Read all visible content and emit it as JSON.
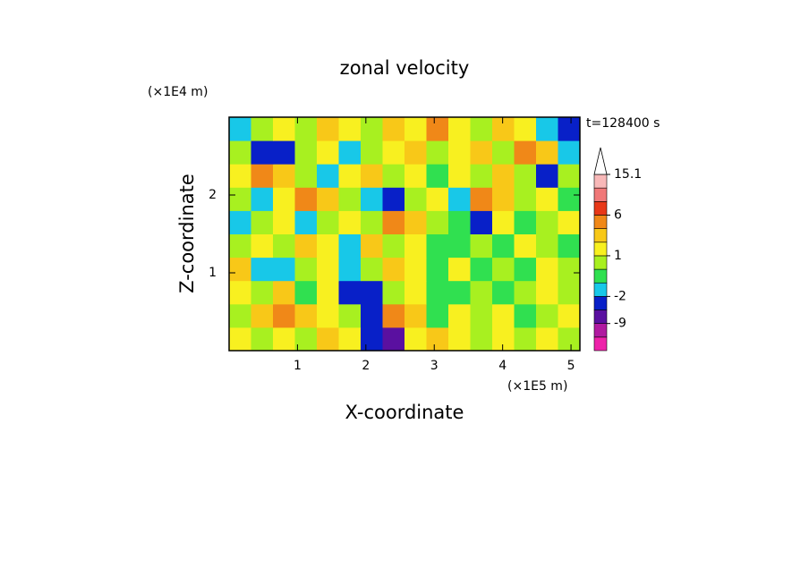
{
  "chart_data": {
    "type": "contour",
    "title": "zonal velocity",
    "x_label": "X-coordinate",
    "y_label": "Z-coordinate",
    "x_unit": "(×1E5 m)",
    "y_unit": "(×1E4 m)",
    "annotation": "t=128400 s",
    "xlim": [
      0,
      5.13
    ],
    "ylim": [
      0,
      3
    ],
    "xticks": [
      1,
      2,
      3,
      4,
      5
    ],
    "yticks": [
      1,
      2
    ],
    "z": [
      [
        1.5,
        0.5,
        1.5,
        0.5,
        2.5,
        1.5,
        -5,
        -6.5,
        1.5,
        2.5,
        1.5,
        0.5,
        1.5,
        0.5,
        1.5,
        0.5
      ],
      [
        0.5,
        2.5,
        4,
        2.5,
        1.5,
        0.5,
        -4,
        4,
        2.5,
        -0.5,
        1.5,
        0.5,
        1.5,
        -0.5,
        0.5,
        1.5
      ],
      [
        1.5,
        0.5,
        2.5,
        -0.5,
        1.5,
        -4,
        -5,
        0.5,
        1.5,
        -0.5,
        -0.5,
        0.5,
        -0.5,
        0.5,
        1.5,
        0.5
      ],
      [
        2.5,
        -1.5,
        -1.5,
        0.5,
        1.5,
        -1.5,
        0.5,
        2.5,
        1.5,
        -0.5,
        1.5,
        -0.5,
        0.5,
        -0.5,
        1.5,
        0.5
      ],
      [
        0.5,
        1.5,
        0.5,
        2.5,
        1.5,
        -1.5,
        2.5,
        0.5,
        1.5,
        -0.5,
        -0.5,
        0.5,
        -0.5,
        1.5,
        0.5,
        -0.5
      ],
      [
        -1.5,
        0.5,
        1.5,
        -1.5,
        0.5,
        1.5,
        0.5,
        4,
        2.5,
        0.5,
        -0.5,
        -5,
        1.5,
        -0.5,
        0.5,
        1.5
      ],
      [
        0.5,
        -1.5,
        1.5,
        4,
        2.5,
        0.5,
        -1.5,
        -4,
        0.5,
        1.5,
        -1.5,
        4,
        2.5,
        0.5,
        1.5,
        -0.5
      ],
      [
        1.5,
        4,
        2.5,
        0.5,
        -1.5,
        1.5,
        2.5,
        0.5,
        1.5,
        -0.5,
        1.5,
        0.5,
        2.5,
        0.5,
        -4,
        0.5
      ],
      [
        0.5,
        -4,
        -3,
        0.5,
        1.5,
        -1.5,
        0.5,
        1.5,
        2.5,
        0.5,
        1.5,
        2.5,
        0.5,
        4,
        2.5,
        -1.5
      ],
      [
        -1.5,
        0.5,
        1.5,
        0.5,
        2.5,
        1.5,
        0.5,
        2.5,
        1.5,
        3.5,
        1.5,
        0.5,
        2.5,
        1.5,
        -1.5,
        -3
      ]
    ],
    "colorbar": {
      "levels": [
        -15,
        -12,
        -9,
        -6,
        -2,
        -1,
        0,
        1,
        2,
        3,
        6,
        9,
        12,
        15.1
      ],
      "colors": [
        "#ee22aa",
        "#b01aa0",
        "#5a10a0",
        "#0820c8",
        "#18c8e8",
        "#30e050",
        "#a8f020",
        "#f8f020",
        "#f8c818",
        "#f08818",
        "#e83818",
        "#f07878",
        "#f8b8b8"
      ],
      "ticks": [
        15.1,
        6,
        1,
        -2,
        -9
      ]
    }
  }
}
